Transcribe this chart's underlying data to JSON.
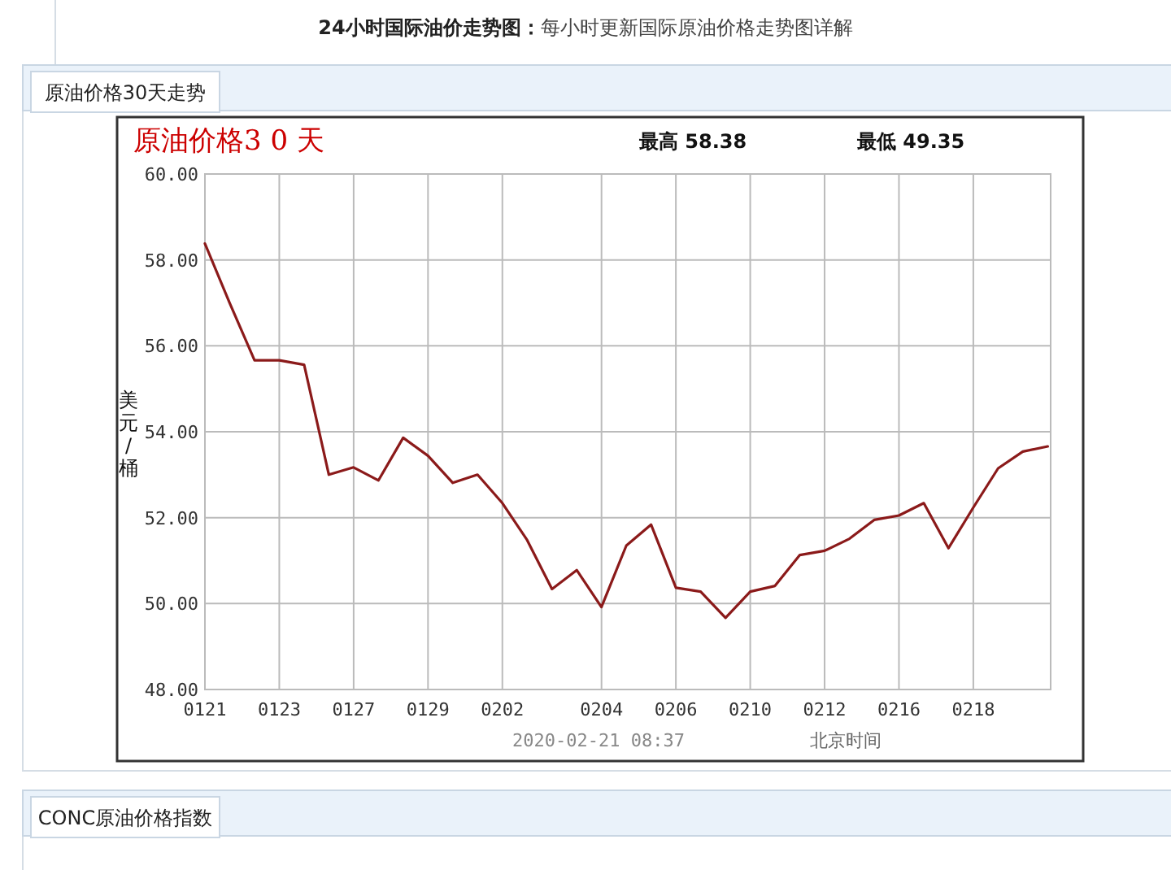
{
  "chart_data": {
    "type": "line",
    "title": "原油价格3 0 天",
    "xlabel": "北京时间",
    "ylabel": "美元/桶",
    "annotations": [
      "24小时国际油价走势图：",
      "每小时更新国际原油价格走势图详解",
      "原油价格30天走势",
      "最高 58.38",
      "最低 49.35",
      "2020-02-21 08:37",
      "CONC原油价格指数"
    ],
    "categories": [
      "0121",
      null,
      null,
      "0123",
      null,
      null,
      "0127",
      null,
      null,
      "0129",
      null,
      null,
      "0202",
      null,
      null,
      null,
      "0204",
      null,
      null,
      "0206",
      null,
      null,
      "0210",
      null,
      null,
      "0212",
      null,
      null,
      "0216",
      null,
      null,
      "0218",
      null,
      null,
      null
    ],
    "series": [
      {
        "color": "#8b1a1a",
        "values": [
          58.38,
          57.0,
          55.66,
          55.66,
          55.56,
          53.0,
          53.17,
          52.87,
          53.86,
          53.44,
          52.81,
          53.0,
          52.34,
          51.48,
          50.34,
          50.78,
          49.92,
          51.35,
          51.84,
          50.37,
          50.28,
          49.67,
          50.28,
          50.41,
          51.13,
          51.23,
          51.51,
          51.95,
          52.05,
          52.34,
          51.29,
          52.24,
          53.15,
          53.54,
          53.66
        ]
      }
    ],
    "ylim": [
      48,
      60
    ],
    "yticks": [
      {
        "value": 48,
        "label": "48.00"
      },
      {
        "value": 50,
        "label": "50.00"
      },
      {
        "value": 52,
        "label": "52.00"
      },
      {
        "value": 54,
        "label": "54.00"
      },
      {
        "value": 56,
        "label": "56.00"
      },
      {
        "value": 58,
        "label": "58.00"
      },
      {
        "value": 60,
        "label": "60.00"
      }
    ],
    "grid": true
  }
}
